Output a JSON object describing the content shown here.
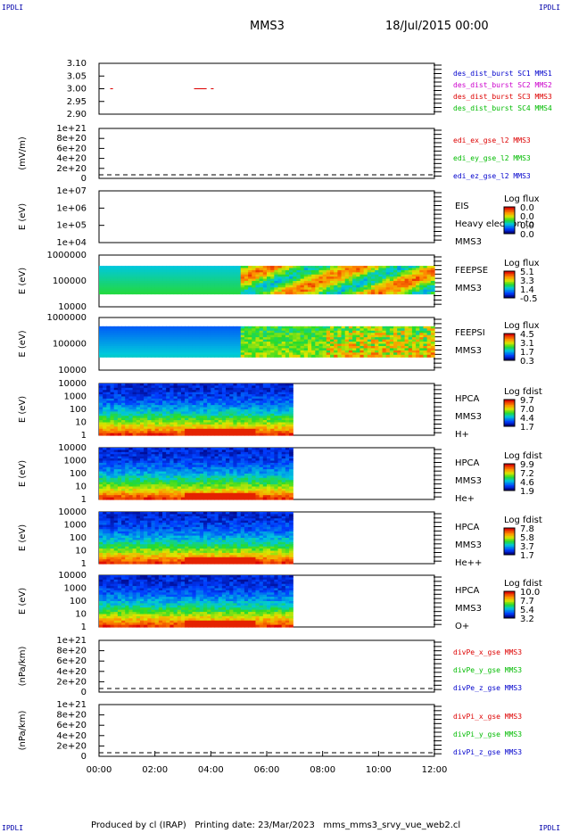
{
  "corners": {
    "top_left": "IPDLI",
    "top_right": "IPDLI",
    "bottom_left": "IPDLI",
    "bottom_right": "IPDLI"
  },
  "header": {
    "spacecraft": "MMS3",
    "date": "18/Jul/2015 00:00"
  },
  "footer": {
    "text": "Produced by cl (IRAP)   Printing date: 23/Mar/2023   mms_mms3_srvy_vue_web2.cl"
  },
  "time_axis": {
    "ticks": [
      "00:00",
      "02:00",
      "04:00",
      "06:00",
      "08:00",
      "10:00",
      "12:00"
    ]
  },
  "colors": {
    "red": "#dd0000",
    "magenta": "#cc00cc",
    "blue": "#0000cc",
    "green": "#00bb00"
  },
  "chart_data": [
    {
      "type": "line",
      "panel": "des_burst",
      "ylim": [
        2.9,
        3.1
      ],
      "yticks": [
        "3.10",
        "3.05",
        "3.00",
        "2.95",
        "2.90"
      ],
      "legend": [
        {
          "text": "des_dist_burst SC1 MMS1",
          "color": "#0000cc"
        },
        {
          "text": "des_dist_burst SC2 MMS2",
          "color": "#cc00cc"
        },
        {
          "text": "des_dist_burst SC3 MMS3",
          "color": "#dd0000"
        },
        {
          "text": "des_dist_burst SC4 MMS4",
          "color": "#00bb00"
        }
      ],
      "segments": [
        {
          "x": [
            0.4,
            0.5
          ],
          "y": 3.0
        },
        {
          "x": [
            3.4,
            3.85
          ],
          "y": 3.0
        },
        {
          "x": [
            4.0,
            4.1
          ],
          "y": 3.0
        }
      ]
    },
    {
      "type": "line",
      "panel": "edi",
      "ylabel": "(mV/m)",
      "yticks": [
        "1e+21",
        "8e+20",
        "6e+20",
        "4e+20",
        "2e+20",
        "0"
      ],
      "legend": [
        {
          "text": "edi_ex_gse_l2 MMS3",
          "color": "#dd0000"
        },
        {
          "text": "edi_ey_gse_l2 MMS3",
          "color": "#00bb00"
        },
        {
          "text": "edi_ez_gse_l2 MMS3",
          "color": "#0000cc"
        }
      ]
    },
    {
      "type": "heatmap",
      "panel": "eis",
      "ylabel": "E (eV)",
      "yticks": [
        "1e+07",
        "1e+06",
        "1e+05",
        "1e+04"
      ],
      "side": [
        "EIS",
        "Heavy electron to",
        "MMS3"
      ],
      "colorbar": {
        "title": "Log flux",
        "labels": [
          "0.0",
          "0.0",
          "0.0",
          "0.0"
        ]
      }
    },
    {
      "type": "heatmap",
      "panel": "feeps_e",
      "ylabel": "E (eV)",
      "yticks": [
        "1000000",
        "100000",
        "10000"
      ],
      "side": [
        "FEEPSE",
        "MMS3"
      ],
      "colorbar": {
        "title": "Log flux",
        "labels": [
          "5.1",
          "3.3",
          "1.4",
          "-0.5"
        ]
      }
    },
    {
      "type": "heatmap",
      "panel": "feeps_i",
      "ylabel": "E (eV)",
      "yticks": [
        "1000000",
        "100000",
        "10000"
      ],
      "side": [
        "FEEPSI",
        "MMS3"
      ],
      "colorbar": {
        "title": "Log flux",
        "labels": [
          "4.5",
          "3.1",
          "1.7",
          "0.3"
        ]
      }
    },
    {
      "type": "heatmap",
      "panel": "hpca_h",
      "ylabel": "E (eV)",
      "yticks": [
        "10000",
        "1000",
        "100",
        "10",
        "1"
      ],
      "side": [
        "HPCA",
        "MMS3",
        "H+"
      ],
      "colorbar": {
        "title": "Log fdist",
        "labels": [
          "9.7",
          "7.0",
          "4.4",
          "1.7"
        ]
      }
    },
    {
      "type": "heatmap",
      "panel": "hpca_he",
      "ylabel": "E (eV)",
      "yticks": [
        "10000",
        "1000",
        "100",
        "10",
        "1"
      ],
      "side": [
        "HPCA",
        "MMS3",
        "He+"
      ],
      "colorbar": {
        "title": "Log fdist",
        "labels": [
          "9.9",
          "7.2",
          "4.6",
          "1.9"
        ]
      }
    },
    {
      "type": "heatmap",
      "panel": "hpca_hepp",
      "ylabel": "E (eV)",
      "yticks": [
        "10000",
        "1000",
        "100",
        "10",
        "1"
      ],
      "side": [
        "HPCA",
        "MMS3",
        "He++"
      ],
      "colorbar": {
        "title": "Log fdist",
        "labels": [
          "7.8",
          "5.8",
          "3.7",
          "1.7"
        ]
      }
    },
    {
      "type": "heatmap",
      "panel": "hpca_o",
      "ylabel": "E (eV)",
      "yticks": [
        "10000",
        "1000",
        "100",
        "10",
        "1"
      ],
      "side": [
        "HPCA",
        "MMS3",
        "O+"
      ],
      "colorbar": {
        "title": "Log fdist",
        "labels": [
          "10.0",
          "7.7",
          "5.4",
          "3.2"
        ]
      }
    },
    {
      "type": "line",
      "panel": "divpe",
      "ylabel": "(nPa/km)",
      "yticks": [
        "1e+21",
        "8e+20",
        "6e+20",
        "4e+20",
        "2e+20",
        "0"
      ],
      "legend": [
        {
          "text": "divPe_x_gse MMS3",
          "color": "#dd0000"
        },
        {
          "text": "divPe_y_gse MMS3",
          "color": "#00bb00"
        },
        {
          "text": "divPe_z_gse MMS3",
          "color": "#0000cc"
        }
      ]
    },
    {
      "type": "line",
      "panel": "divpi",
      "ylabel": "(nPa/km)",
      "yticks": [
        "1e+21",
        "8e+20",
        "6e+20",
        "4e+20",
        "2e+20",
        "0"
      ],
      "legend": [
        {
          "text": "divPi_x_gse MMS3",
          "color": "#dd0000"
        },
        {
          "text": "divPi_y_gse MMS3",
          "color": "#00bb00"
        },
        {
          "text": "divPi_z_gse MMS3",
          "color": "#0000cc"
        }
      ]
    }
  ]
}
